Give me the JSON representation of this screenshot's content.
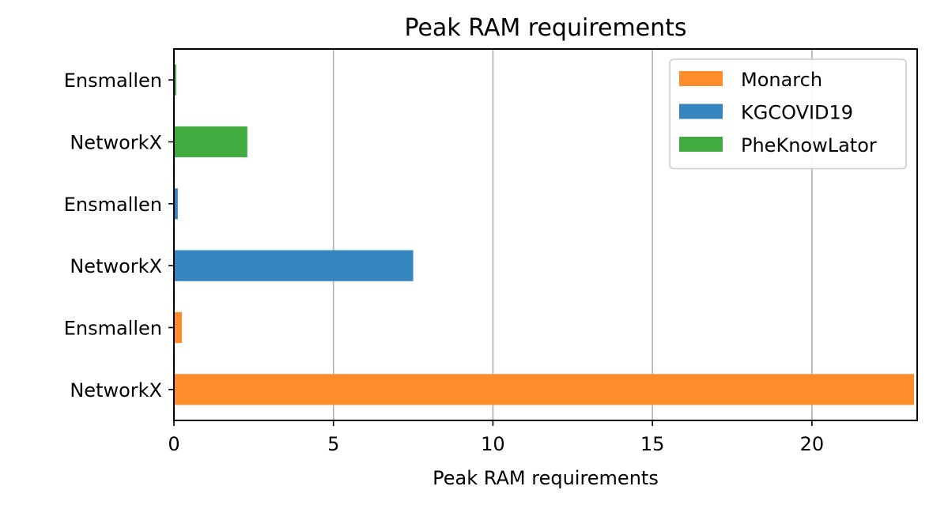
{
  "chart_data": {
    "type": "bar",
    "orientation": "horizontal",
    "title": "Peak RAM requirements",
    "xlabel": "Peak RAM requirements",
    "ylabel": "",
    "xlim": [
      0,
      23.3
    ],
    "xticks": [
      0,
      5,
      10,
      15,
      20
    ],
    "grid": "x",
    "legend_position": "upper right",
    "categories": [
      "NetworkX",
      "Ensmallen",
      "NetworkX",
      "Ensmallen",
      "NetworkX",
      "Ensmallen"
    ],
    "bars": [
      {
        "category": "NetworkX",
        "series": "Monarch",
        "value": 23.2
      },
      {
        "category": "Ensmallen",
        "series": "Monarch",
        "value": 0.25
      },
      {
        "category": "NetworkX",
        "series": "KGCOVID19",
        "value": 7.5
      },
      {
        "category": "Ensmallen",
        "series": "KGCOVID19",
        "value": 0.12
      },
      {
        "category": "NetworkX",
        "series": "PheKnowLator",
        "value": 2.3
      },
      {
        "category": "Ensmallen",
        "series": "PheKnowLator",
        "value": 0.07
      }
    ],
    "series": [
      {
        "name": "Monarch",
        "color": "#ff8c2b"
      },
      {
        "name": "KGCOVID19",
        "color": "#3785bf"
      },
      {
        "name": "PheKnowLator",
        "color": "#41aa41"
      }
    ]
  }
}
